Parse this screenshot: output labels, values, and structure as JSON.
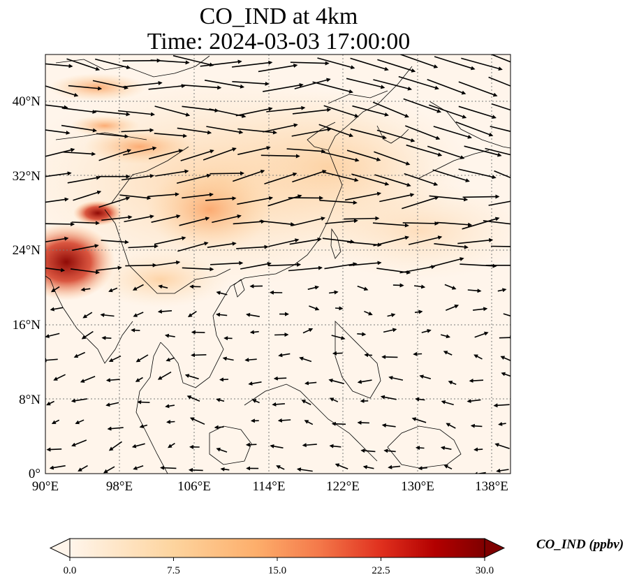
{
  "title": {
    "line1": "CO_IND at 4km",
    "line2": "Time: 2024-03-03 17:00:00"
  },
  "map": {
    "region": "East and Southeast Asia",
    "lon_range_deg": [
      90,
      140
    ],
    "lat_range_deg": [
      0,
      45
    ],
    "gridlines": "dotted",
    "lon_ticks": [
      "90°E",
      "98°E",
      "106°E",
      "114°E",
      "122°E",
      "130°E",
      "138°E"
    ],
    "lat_ticks": [
      "0°",
      "8°N",
      "16°N",
      "24°N",
      "32°N",
      "40°N"
    ],
    "field": "CO_IND concentration (ppbv)",
    "overlay": "wind vectors (arrows)"
  },
  "colorbar": {
    "label": "CO_IND (ppbv)",
    "ticks": [
      "0.0",
      "7.5",
      "15.0",
      "22.5",
      "30.0"
    ],
    "range": [
      0,
      30
    ],
    "extend": "both",
    "colormap": "Oranges-to-dark-red",
    "colors": [
      "#fff5eb",
      "#fdd49e",
      "#fdae6b",
      "#fc8d59",
      "#e34a33",
      "#b30000",
      "#7f0000"
    ]
  }
}
